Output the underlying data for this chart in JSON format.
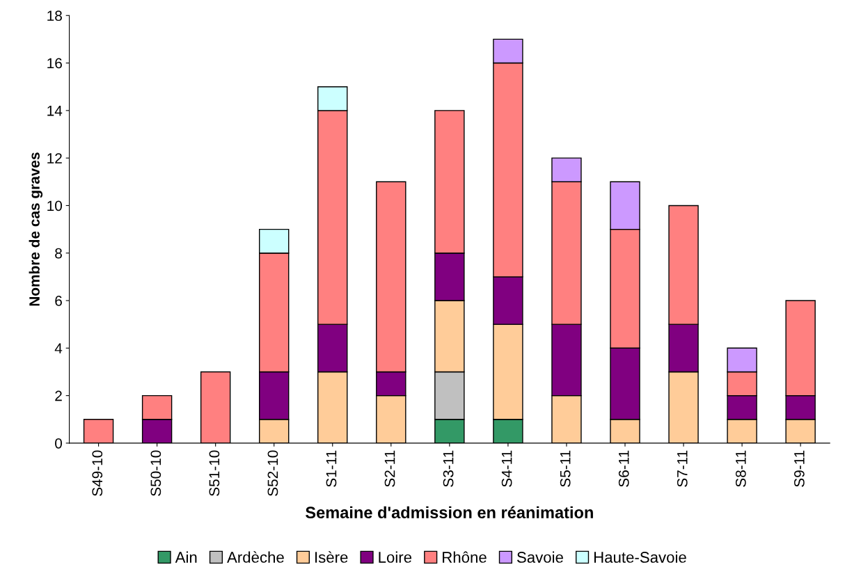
{
  "chart_data": {
    "type": "bar",
    "stacked": true,
    "xlabel": "Semaine d'admission en réanimation",
    "ylabel": "Nombre de cas graves",
    "categories": [
      "S49-10",
      "S50-10",
      "S51-10",
      "S52-10",
      "S1-11",
      "S2-11",
      "S3-11",
      "S4-11",
      "S5-11",
      "S6-11",
      "S7-11",
      "S8-11",
      "S9-11"
    ],
    "series": [
      {
        "name": "Ain",
        "color": "#339966",
        "values": [
          0,
          0,
          0,
          0,
          0,
          0,
          1,
          1,
          0,
          0,
          0,
          0,
          0
        ]
      },
      {
        "name": "Ardèche",
        "color": "#c0c0c0",
        "values": [
          0,
          0,
          0,
          0,
          0,
          0,
          2,
          0,
          0,
          0,
          0,
          0,
          0
        ]
      },
      {
        "name": "Isère",
        "color": "#ffcc99",
        "values": [
          0,
          0,
          0,
          1,
          3,
          2,
          3,
          4,
          2,
          1,
          3,
          1,
          1
        ]
      },
      {
        "name": "Loire",
        "color": "#800080",
        "values": [
          0,
          1,
          0,
          2,
          2,
          1,
          2,
          2,
          3,
          3,
          2,
          1,
          1
        ]
      },
      {
        "name": "Rhône",
        "color": "#ff8080",
        "values": [
          1,
          1,
          3,
          5,
          9,
          8,
          6,
          9,
          6,
          5,
          5,
          1,
          4
        ]
      },
      {
        "name": "Savoie",
        "color": "#cc99ff",
        "values": [
          0,
          0,
          0,
          0,
          0,
          0,
          0,
          1,
          1,
          2,
          0,
          1,
          0
        ]
      },
      {
        "name": "Haute-Savoie",
        "color": "#ccffff",
        "values": [
          0,
          0,
          0,
          1,
          1,
          0,
          0,
          0,
          0,
          0,
          0,
          0,
          0
        ]
      }
    ],
    "ylim": [
      0,
      18
    ],
    "yticks": [
      0,
      2,
      4,
      6,
      8,
      10,
      12,
      14,
      16,
      18
    ],
    "grid": false,
    "legend": "bottom"
  }
}
